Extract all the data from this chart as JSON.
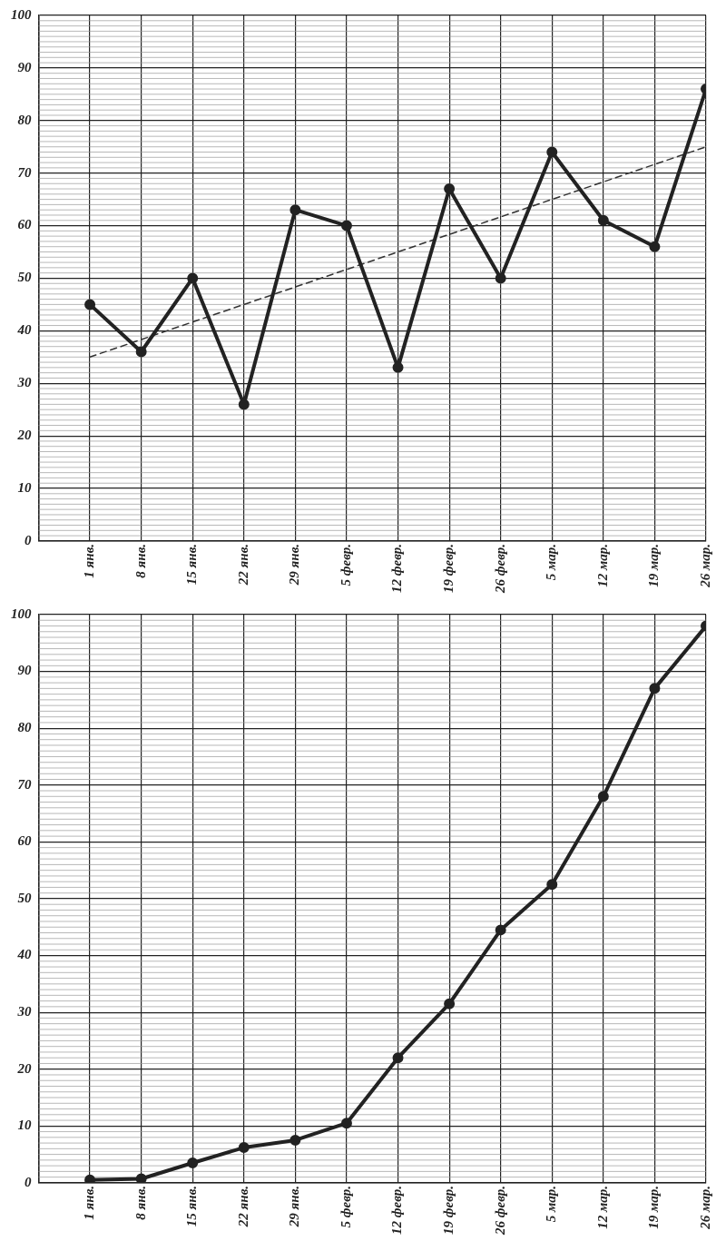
{
  "chart_data": [
    {
      "type": "line",
      "categories": [
        "1 янв.",
        "8 янв.",
        "15 янв.",
        "22 янв.",
        "29 янв.",
        "5 февр.",
        "12 февр.",
        "19 февр.",
        "26 февр.",
        "5 мар.",
        "12 мар.",
        "19 мар.",
        "26 мар."
      ],
      "series": [
        {
          "color": "#222222",
          "values": [
            45,
            36,
            50,
            26,
            63,
            60,
            33,
            67,
            50,
            74,
            61,
            56,
            86
          ],
          "marker": "circle",
          "line_style": "solid"
        },
        {
          "color": "#333333",
          "values": [
            35,
            null,
            null,
            null,
            null,
            null,
            null,
            null,
            null,
            null,
            null,
            null,
            75
          ],
          "marker": "none",
          "line_style": "dashed"
        }
      ],
      "ylim": [
        0,
        100
      ],
      "yticks": [
        0,
        10,
        20,
        30,
        40,
        50,
        60,
        70,
        80,
        90,
        100
      ],
      "grid": true,
      "legend": false
    },
    {
      "type": "line",
      "categories": [
        "1 янв.",
        "8 янв.",
        "15 янв.",
        "22 янв.",
        "29 янв.",
        "5 февр.",
        "12 февр.",
        "19 февр.",
        "26 февр.",
        "5 мар.",
        "12 мар.",
        "19 мар.",
        "26 мар."
      ],
      "series": [
        {
          "color": "#222222",
          "values": [
            0.5,
            0.7,
            3.5,
            6.2,
            7.5,
            10.5,
            22,
            31.5,
            44.5,
            52.5,
            68,
            87,
            98
          ],
          "marker": "circle",
          "line_style": "solid"
        }
      ],
      "ylim": [
        0,
        100
      ],
      "yticks": [
        0,
        10,
        20,
        30,
        40,
        50,
        60,
        70,
        80,
        90,
        100
      ],
      "grid": true,
      "legend": false
    }
  ]
}
